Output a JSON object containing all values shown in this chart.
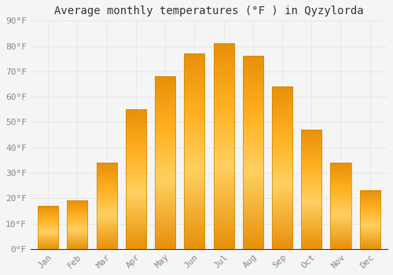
{
  "title": "Average monthly temperatures (°F ) in Qyzylorda",
  "months": [
    "Jan",
    "Feb",
    "Mar",
    "Apr",
    "May",
    "Jun",
    "Jul",
    "Aug",
    "Sep",
    "Oct",
    "Nov",
    "Dec"
  ],
  "values": [
    17,
    19,
    34,
    55,
    68,
    77,
    81,
    76,
    64,
    47,
    34,
    23
  ],
  "bar_color_main": "#FFA500",
  "bar_color_mid": "#FFD060",
  "ylim": [
    0,
    90
  ],
  "yticks": [
    0,
    10,
    20,
    30,
    40,
    50,
    60,
    70,
    80,
    90
  ],
  "ytick_labels": [
    "0°F",
    "10°F",
    "20°F",
    "30°F",
    "40°F",
    "50°F",
    "60°F",
    "70°F",
    "80°F",
    "90°F"
  ],
  "background_color": "#F5F5F5",
  "grid_color": "#E8E8E8",
  "title_fontsize": 10,
  "tick_fontsize": 8,
  "bar_edge_color": "#CC8800",
  "bar_edge_width": 0.5
}
